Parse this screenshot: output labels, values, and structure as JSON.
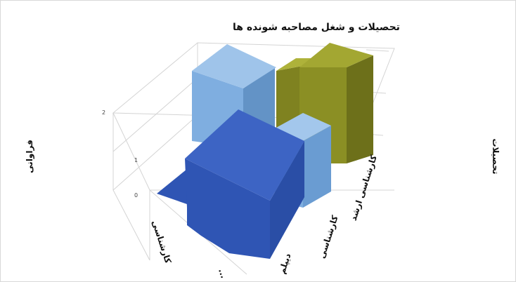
{
  "chart_data": {
    "type": "bar",
    "style": "3d-column",
    "title": "تحصیلات و شغل مصاحبه شونده ها",
    "ylabel": "فراوانی",
    "zlabel": "تحصیلات",
    "y_ticks": [
      "0",
      "1",
      "2"
    ],
    "ylim": [
      0,
      2
    ],
    "x_categories": [
      "کارشناسی",
      "..."
    ],
    "depth_categories": [
      "دیپلم",
      "کارشناسی",
      "کارشناسی ارشد"
    ],
    "series": [
      {
        "color": "#2f55b4",
        "values": [
          0,
          2
        ]
      },
      {
        "color": "#7faee0",
        "values": [
          2.5,
          1
        ]
      },
      {
        "color": "#8b8f24",
        "values": [
          1,
          2
        ]
      }
    ],
    "grid": true,
    "legend": "none"
  }
}
